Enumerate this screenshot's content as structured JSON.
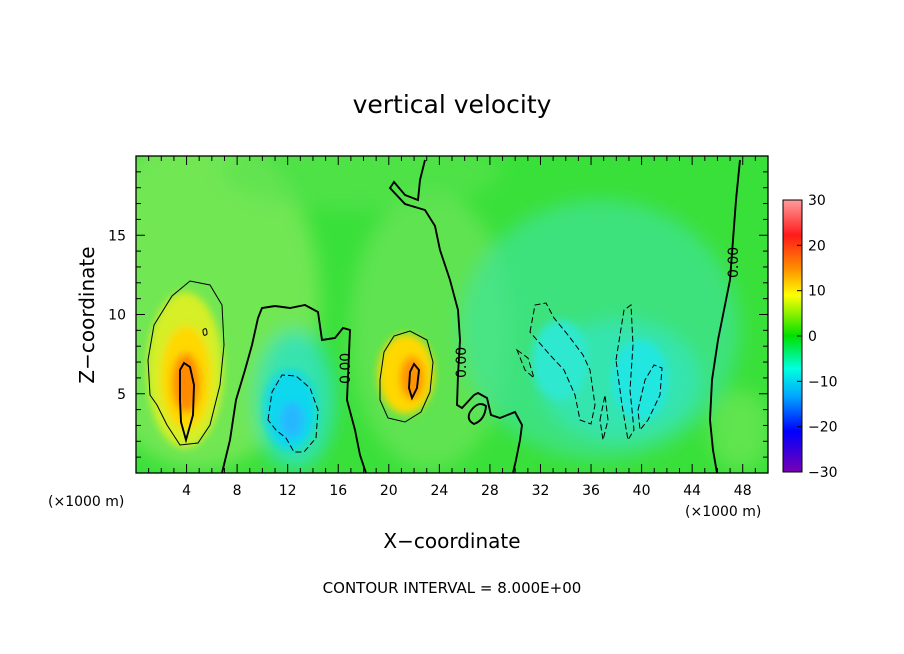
{
  "chart_data": {
    "type": "heatmap",
    "title": "vertical velocity",
    "xlabel": "X−coordinate",
    "ylabel": "Z−coordinate",
    "x_unit_left": "(×1000 m)",
    "x_unit_right": "(×1000 m)",
    "footer": "CONTOUR INTERVAL = 8.000E+00",
    "xlim": [
      0,
      50
    ],
    "ylim": [
      0,
      20
    ],
    "x_ticks": [
      4,
      8,
      12,
      16,
      20,
      24,
      28,
      32,
      36,
      40,
      44,
      48
    ],
    "x_tick_labels": [
      "4",
      "8",
      "12",
      "16",
      "20",
      "24",
      "28",
      "32",
      "36",
      "40",
      "44",
      "48"
    ],
    "y_ticks": [
      5,
      10,
      15
    ],
    "y_tick_labels": [
      "5",
      "10",
      "15"
    ],
    "colorbar": {
      "min": -30,
      "max": 30,
      "ticks": [
        30,
        20,
        10,
        0,
        -10,
        -20,
        -30
      ],
      "tick_labels": [
        "30",
        "20",
        "10",
        "0",
        "−10",
        "−20",
        "−30"
      ],
      "colors": [
        "#ff9090",
        "#ff1a1a",
        "#ff8c00",
        "#ffff00",
        "#00e000",
        "#00ffff",
        "#00a0ff",
        "#0000ff",
        "#7000c0"
      ]
    },
    "contour_labels": [
      "0.00",
      "0.00",
      "0.00",
      "0.00"
    ],
    "features": [
      {
        "kind": "updraft",
        "x": 4.2,
        "z": 5.8,
        "peak": 18
      },
      {
        "kind": "updraft",
        "x": 21.8,
        "z": 6.0,
        "peak": 14
      },
      {
        "kind": "downdraft",
        "x": 12.5,
        "z": 4.0,
        "peak": -8
      },
      {
        "kind": "downdraft",
        "x": 34.5,
        "z": 8.0,
        "peak": -5
      },
      {
        "kind": "downdraft",
        "x": 39.5,
        "z": 5.5,
        "peak": -6
      }
    ]
  }
}
